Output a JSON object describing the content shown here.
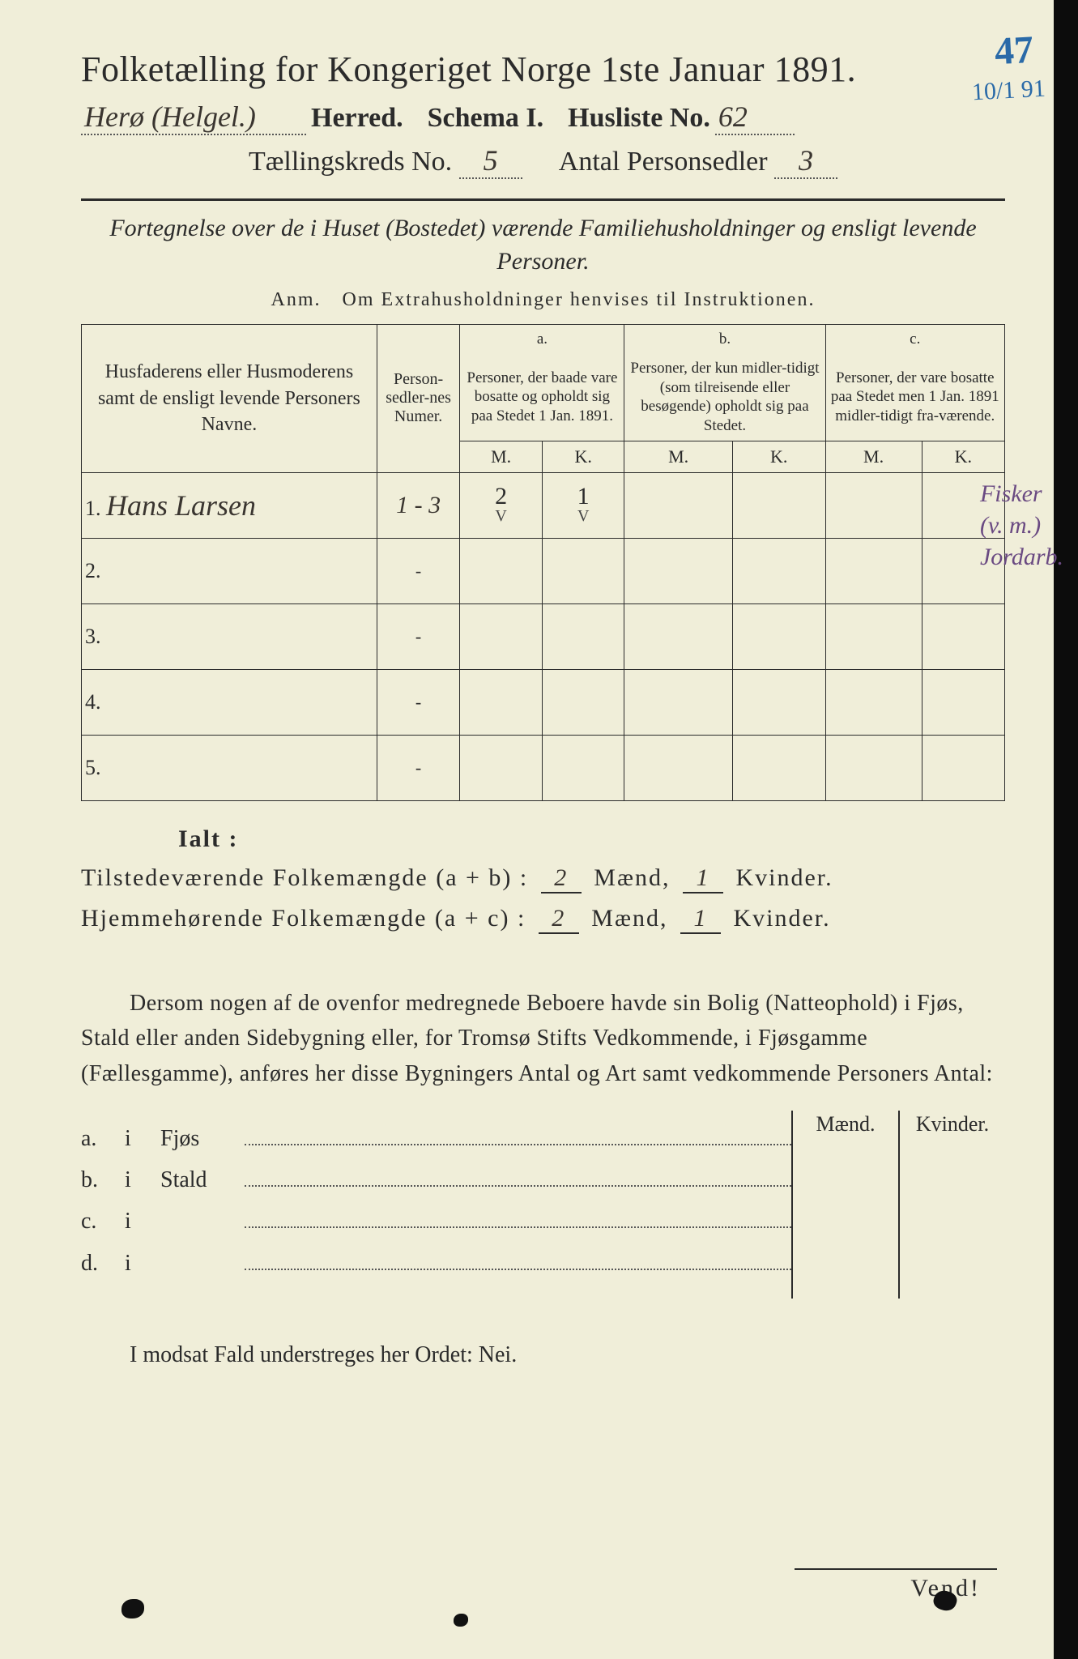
{
  "corner": {
    "num": "47",
    "sub": "10/1 91"
  },
  "title": "Folketælling for Kongeriget Norge 1ste Januar 1891.",
  "header": {
    "herred_hand": "Herø (Helgel.)",
    "herred_label": "Herred.",
    "schema_label": "Schema I.",
    "husliste_label": "Husliste No.",
    "husliste_no": "62",
    "kreds_label": "Tællingskreds No.",
    "kreds_no": "5",
    "antal_label": "Antal Personsedler",
    "antal_no": "3"
  },
  "subtitle": "Fortegnelse over de i Huset (Bostedet) værende Familiehusholdninger og ensligt levende Personer.",
  "anm": "Anm. Om Extrahusholdninger henvises til Instruktionen.",
  "table": {
    "col_name": "Husfaderens eller Husmoderens samt de ensligt levende Personers Navne.",
    "col_num": "Person-sedler-nes Numer.",
    "col_a_top": "a.",
    "col_a": "Personer, der baade vare bosatte og opholdt sig paa Stedet 1 Jan. 1891.",
    "col_b_top": "b.",
    "col_b": "Personer, der kun midler-tidigt (som tilreisende eller besøgende) opholdt sig paa Stedet.",
    "col_c_top": "c.",
    "col_c": "Personer, der vare bosatte paa Stedet men 1 Jan. 1891 midler-tidigt fra-værende.",
    "mk_m": "M.",
    "mk_k": "K.",
    "rows": [
      {
        "n": "1.",
        "name": "Hans Larsen",
        "num": "1 - 3",
        "a_m": "2",
        "a_k": "1",
        "b_m": "",
        "b_k": "",
        "c_m": "",
        "c_k": ""
      },
      {
        "n": "2.",
        "name": "",
        "num": "-",
        "a_m": "",
        "a_k": "",
        "b_m": "",
        "b_k": "",
        "c_m": "",
        "c_k": ""
      },
      {
        "n": "3.",
        "name": "",
        "num": "-",
        "a_m": "",
        "a_k": "",
        "b_m": "",
        "b_k": "",
        "c_m": "",
        "c_k": ""
      },
      {
        "n": "4.",
        "name": "",
        "num": "-",
        "a_m": "",
        "a_k": "",
        "b_m": "",
        "b_k": "",
        "c_m": "",
        "c_k": ""
      },
      {
        "n": "5.",
        "name": "",
        "num": "-",
        "a_m": "",
        "a_k": "",
        "b_m": "",
        "b_k": "",
        "c_m": "",
        "c_k": ""
      }
    ]
  },
  "side_notes": {
    "l1": "Fisker",
    "l2": "(v. m.)",
    "l3": "Jordarb."
  },
  "ialt": {
    "title": "Ialt :",
    "row1_label_a": "Tilstedeværende  Folkemængde (a + b) :",
    "row1_m": "2",
    "row1_mid": "Mænd,",
    "row1_k": "1",
    "row1_end": "Kvinder.",
    "row2_label_a": "Hjemmehørende  Folkemængde (a + c) :",
    "row2_m": "2",
    "row2_k": "1"
  },
  "para": "Dersom nogen af de ovenfor medregnede Beboere havde sin Bolig (Natteophold) i Fjøs, Stald eller anden Sidebygning eller, for Tromsø Stifts Vedkommende, i Fjøsgamme (Fællesgamme), anføres her disse Bygningers Antal og Art samt vedkommende Personers Antal:",
  "dwelling": {
    "hdr_m": "Mænd.",
    "hdr_k": "Kvinder.",
    "rows": [
      {
        "k": "a.",
        "i": "i",
        "label": "Fjøs"
      },
      {
        "k": "b.",
        "i": "i",
        "label": "Stald"
      },
      {
        "k": "c.",
        "i": "i",
        "label": ""
      },
      {
        "k": "d.",
        "i": "i",
        "label": ""
      }
    ]
  },
  "bottom": "I modsat Fald understreges her Ordet: Nei.",
  "vend": "Vend!",
  "colors": {
    "paper": "#f0eed9",
    "ink": "#2b2b2b",
    "blue": "#2a6aa8",
    "purple": "#6a4a82"
  }
}
